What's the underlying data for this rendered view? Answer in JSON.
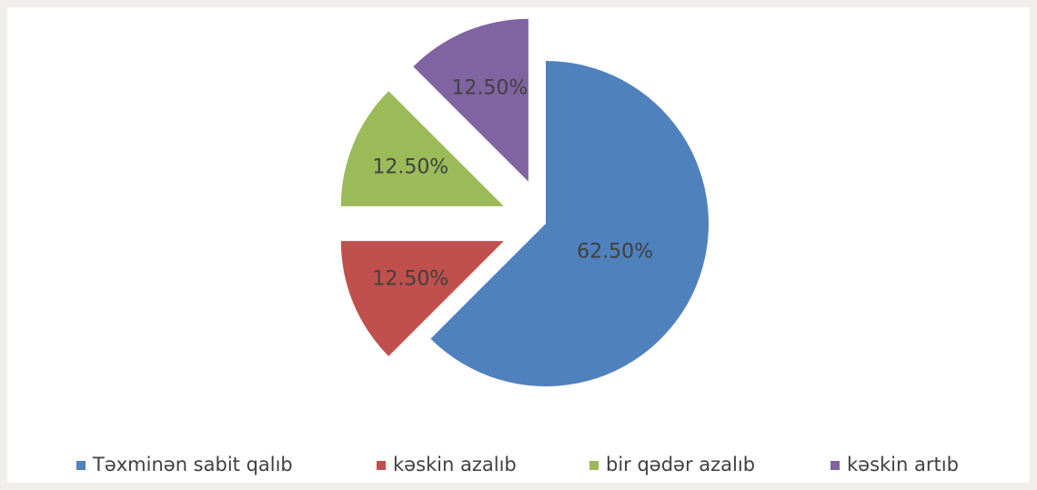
{
  "chart_data": {
    "type": "pie",
    "categories": [
      "Təxminən sabit qalıb",
      "kəskin azalıb",
      "bir qədər azalıb",
      "kəskin artıb"
    ],
    "values": [
      62.5,
      12.5,
      12.5,
      12.5
    ],
    "value_labels": [
      "62.50%",
      "12.50%",
      "12.50%",
      "12.50%"
    ],
    "colors": [
      "#4f81bd",
      "#c0504d",
      "#9bbb59",
      "#8064a2"
    ],
    "exploded": [
      false,
      true,
      true,
      true
    ],
    "legend": "bottom"
  }
}
